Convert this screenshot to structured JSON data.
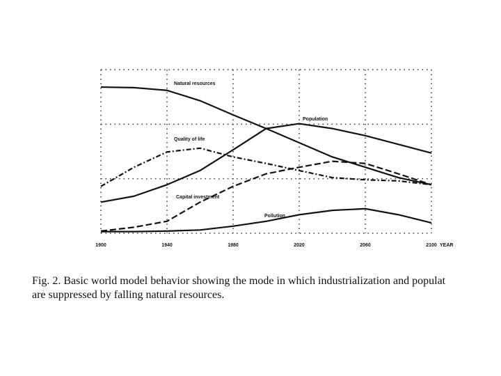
{
  "chart_data": {
    "type": "line",
    "x": [
      1900,
      1920,
      1940,
      1960,
      1980,
      2000,
      2020,
      2040,
      2060,
      2080,
      2100
    ],
    "xlim": [
      1900,
      2100
    ],
    "xticks": [
      1900,
      1940,
      1980,
      2020,
      2060,
      2100
    ],
    "x_label": "YEAR",
    "ylim": [
      0,
      3
    ],
    "yticks": [
      0,
      1,
      2,
      3
    ],
    "grid": true,
    "series": [
      {
        "name": "Natural resources",
        "color": "#111111",
        "dash": "solid",
        "values": [
          2.68,
          2.67,
          2.62,
          2.43,
          2.17,
          1.92,
          1.66,
          1.4,
          1.21,
          1.02,
          0.89
        ]
      },
      {
        "name": "Population",
        "color": "#111111",
        "dash": "solid",
        "values": [
          0.57,
          0.68,
          0.89,
          1.15,
          1.53,
          1.92,
          2.01,
          1.92,
          1.79,
          1.63,
          1.47
        ]
      },
      {
        "name": "Quality of life",
        "color": "#111111",
        "dash": "dashdot",
        "values": [
          0.86,
          1.21,
          1.49,
          1.56,
          1.4,
          1.28,
          1.15,
          1.02,
          0.98,
          0.96,
          0.89
        ]
      },
      {
        "name": "Capital investment",
        "color": "#111111",
        "dash": "dashed",
        "values": [
          0.04,
          0.11,
          0.22,
          0.57,
          0.86,
          1.09,
          1.21,
          1.32,
          1.28,
          1.09,
          0.89
        ]
      },
      {
        "name": "Pollution",
        "color": "#111111",
        "dash": "solid",
        "values": [
          0.03,
          0.03,
          0.04,
          0.06,
          0.13,
          0.22,
          0.34,
          0.42,
          0.45,
          0.34,
          0.19
        ]
      }
    ],
    "caption": [
      "Fig. 2.  Basic world model behavior showing the mode in which industrialization and populat",
      "are suppressed by falling natural resources."
    ]
  }
}
